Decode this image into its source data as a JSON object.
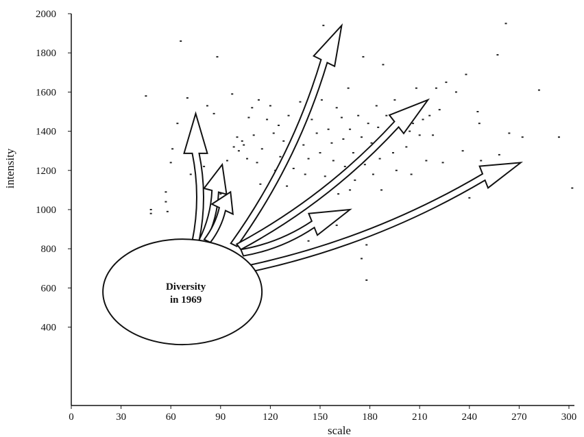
{
  "chart_data": {
    "type": "scatter",
    "xlabel": "scale",
    "ylabel": "intensity",
    "xlim": [
      0,
      300
    ],
    "ylim": [
      0,
      2000
    ],
    "x_ticks": [
      0,
      30,
      60,
      90,
      120,
      150,
      180,
      210,
      240,
      270,
      300
    ],
    "y_ticks": [
      400,
      600,
      800,
      1000,
      1200,
      1400,
      1600,
      1800,
      2000
    ],
    "grid": false,
    "annotation": {
      "label_line1": "Diversity",
      "label_line2": "in 1969",
      "center": [
        67,
        580
      ]
    },
    "arrows": [
      {
        "from": [
          75,
          840
        ],
        "to": [
          75,
          1490
        ]
      },
      {
        "from": [
          79,
          840
        ],
        "to": [
          91,
          1230
        ]
      },
      {
        "from": [
          82,
          840
        ],
        "to": [
          96,
          1090
        ]
      },
      {
        "from": [
          98,
          820
        ],
        "to": [
          163,
          1940
        ]
      },
      {
        "from": [
          101,
          810
        ],
        "to": [
          215,
          1560
        ]
      },
      {
        "from": [
          103,
          780
        ],
        "to": [
          168,
          1000
        ]
      },
      {
        "from": [
          108,
          700
        ],
        "to": [
          271,
          1240
        ]
      }
    ],
    "points": [
      [
        45,
        1580
      ],
      [
        48,
        1000
      ],
      [
        48,
        980
      ],
      [
        57,
        1090
      ],
      [
        57,
        1040
      ],
      [
        58,
        990
      ],
      [
        60,
        1240
      ],
      [
        61,
        1310
      ],
      [
        64,
        1440
      ],
      [
        66,
        1860
      ],
      [
        70,
        1570
      ],
      [
        72,
        1180
      ],
      [
        75,
        1400
      ],
      [
        78,
        1390
      ],
      [
        80,
        1220
      ],
      [
        82,
        1530
      ],
      [
        86,
        1490
      ],
      [
        88,
        1780
      ],
      [
        90,
        1080
      ],
      [
        92,
        1140
      ],
      [
        94,
        1250
      ],
      [
        97,
        1590
      ],
      [
        98,
        1320
      ],
      [
        100,
        1370
      ],
      [
        101,
        1300
      ],
      [
        103,
        1350
      ],
      [
        104,
        1330
      ],
      [
        106,
        1260
      ],
      [
        107,
        1470
      ],
      [
        109,
        1520
      ],
      [
        110,
        1380
      ],
      [
        112,
        1240
      ],
      [
        113,
        1560
      ],
      [
        114,
        1130
      ],
      [
        115,
        1310
      ],
      [
        117,
        1070
      ],
      [
        118,
        1460
      ],
      [
        120,
        1530
      ],
      [
        122,
        1390
      ],
      [
        123,
        1200
      ],
      [
        125,
        1430
      ],
      [
        126,
        1270
      ],
      [
        128,
        1350
      ],
      [
        130,
        1120
      ],
      [
        131,
        1480
      ],
      [
        133,
        1300
      ],
      [
        134,
        1210
      ],
      [
        136,
        1400
      ],
      [
        138,
        1550
      ],
      [
        140,
        1330
      ],
      [
        141,
        1180
      ],
      [
        143,
        1260
      ],
      [
        145,
        1460
      ],
      [
        146,
        1050
      ],
      [
        148,
        1390
      ],
      [
        150,
        1290
      ],
      [
        151,
        1560
      ],
      [
        152,
        1940
      ],
      [
        153,
        1170
      ],
      [
        155,
        1410
      ],
      [
        157,
        1340
      ],
      [
        158,
        1250
      ],
      [
        160,
        1520
      ],
      [
        161,
        1080
      ],
      [
        163,
        1470
      ],
      [
        164,
        1360
      ],
      [
        165,
        1220
      ],
      [
        167,
        1620
      ],
      [
        168,
        1410
      ],
      [
        170,
        1290
      ],
      [
        171,
        1150
      ],
      [
        173,
        1480
      ],
      [
        175,
        1370
      ],
      [
        176,
        1780
      ],
      [
        177,
        1230
      ],
      [
        178,
        820
      ],
      [
        179,
        1440
      ],
      [
        181,
        1340
      ],
      [
        182,
        1180
      ],
      [
        184,
        1530
      ],
      [
        185,
        1420
      ],
      [
        186,
        1260
      ],
      [
        187,
        1100
      ],
      [
        188,
        1740
      ],
      [
        190,
        1480
      ],
      [
        192,
        1380
      ],
      [
        194,
        1290
      ],
      [
        195,
        1560
      ],
      [
        196,
        1200
      ],
      [
        198,
        1450
      ],
      [
        200,
        1500
      ],
      [
        202,
        1320
      ],
      [
        204,
        1400
      ],
      [
        205,
        1180
      ],
      [
        206,
        1440
      ],
      [
        207,
        1500
      ],
      [
        208,
        1620
      ],
      [
        210,
        1380
      ],
      [
        212,
        1460
      ],
      [
        214,
        1250
      ],
      [
        216,
        1480
      ],
      [
        218,
        1380
      ],
      [
        220,
        1620
      ],
      [
        222,
        1510
      ],
      [
        224,
        1240
      ],
      [
        226,
        1650
      ],
      [
        232,
        1600
      ],
      [
        236,
        1300
      ],
      [
        238,
        1690
      ],
      [
        240,
        1060
      ],
      [
        245,
        1500
      ],
      [
        246,
        1440
      ],
      [
        247,
        1250
      ],
      [
        257,
        1790
      ],
      [
        258,
        1280
      ],
      [
        262,
        1950
      ],
      [
        264,
        1390
      ],
      [
        272,
        1370
      ],
      [
        282,
        1610
      ],
      [
        294,
        1370
      ],
      [
        302,
        1110
      ],
      [
        168,
        1100
      ],
      [
        175,
        750
      ],
      [
        178,
        640
      ],
      [
        160,
        920
      ],
      [
        143,
        840
      ],
      [
        90,
        1000
      ]
    ]
  }
}
